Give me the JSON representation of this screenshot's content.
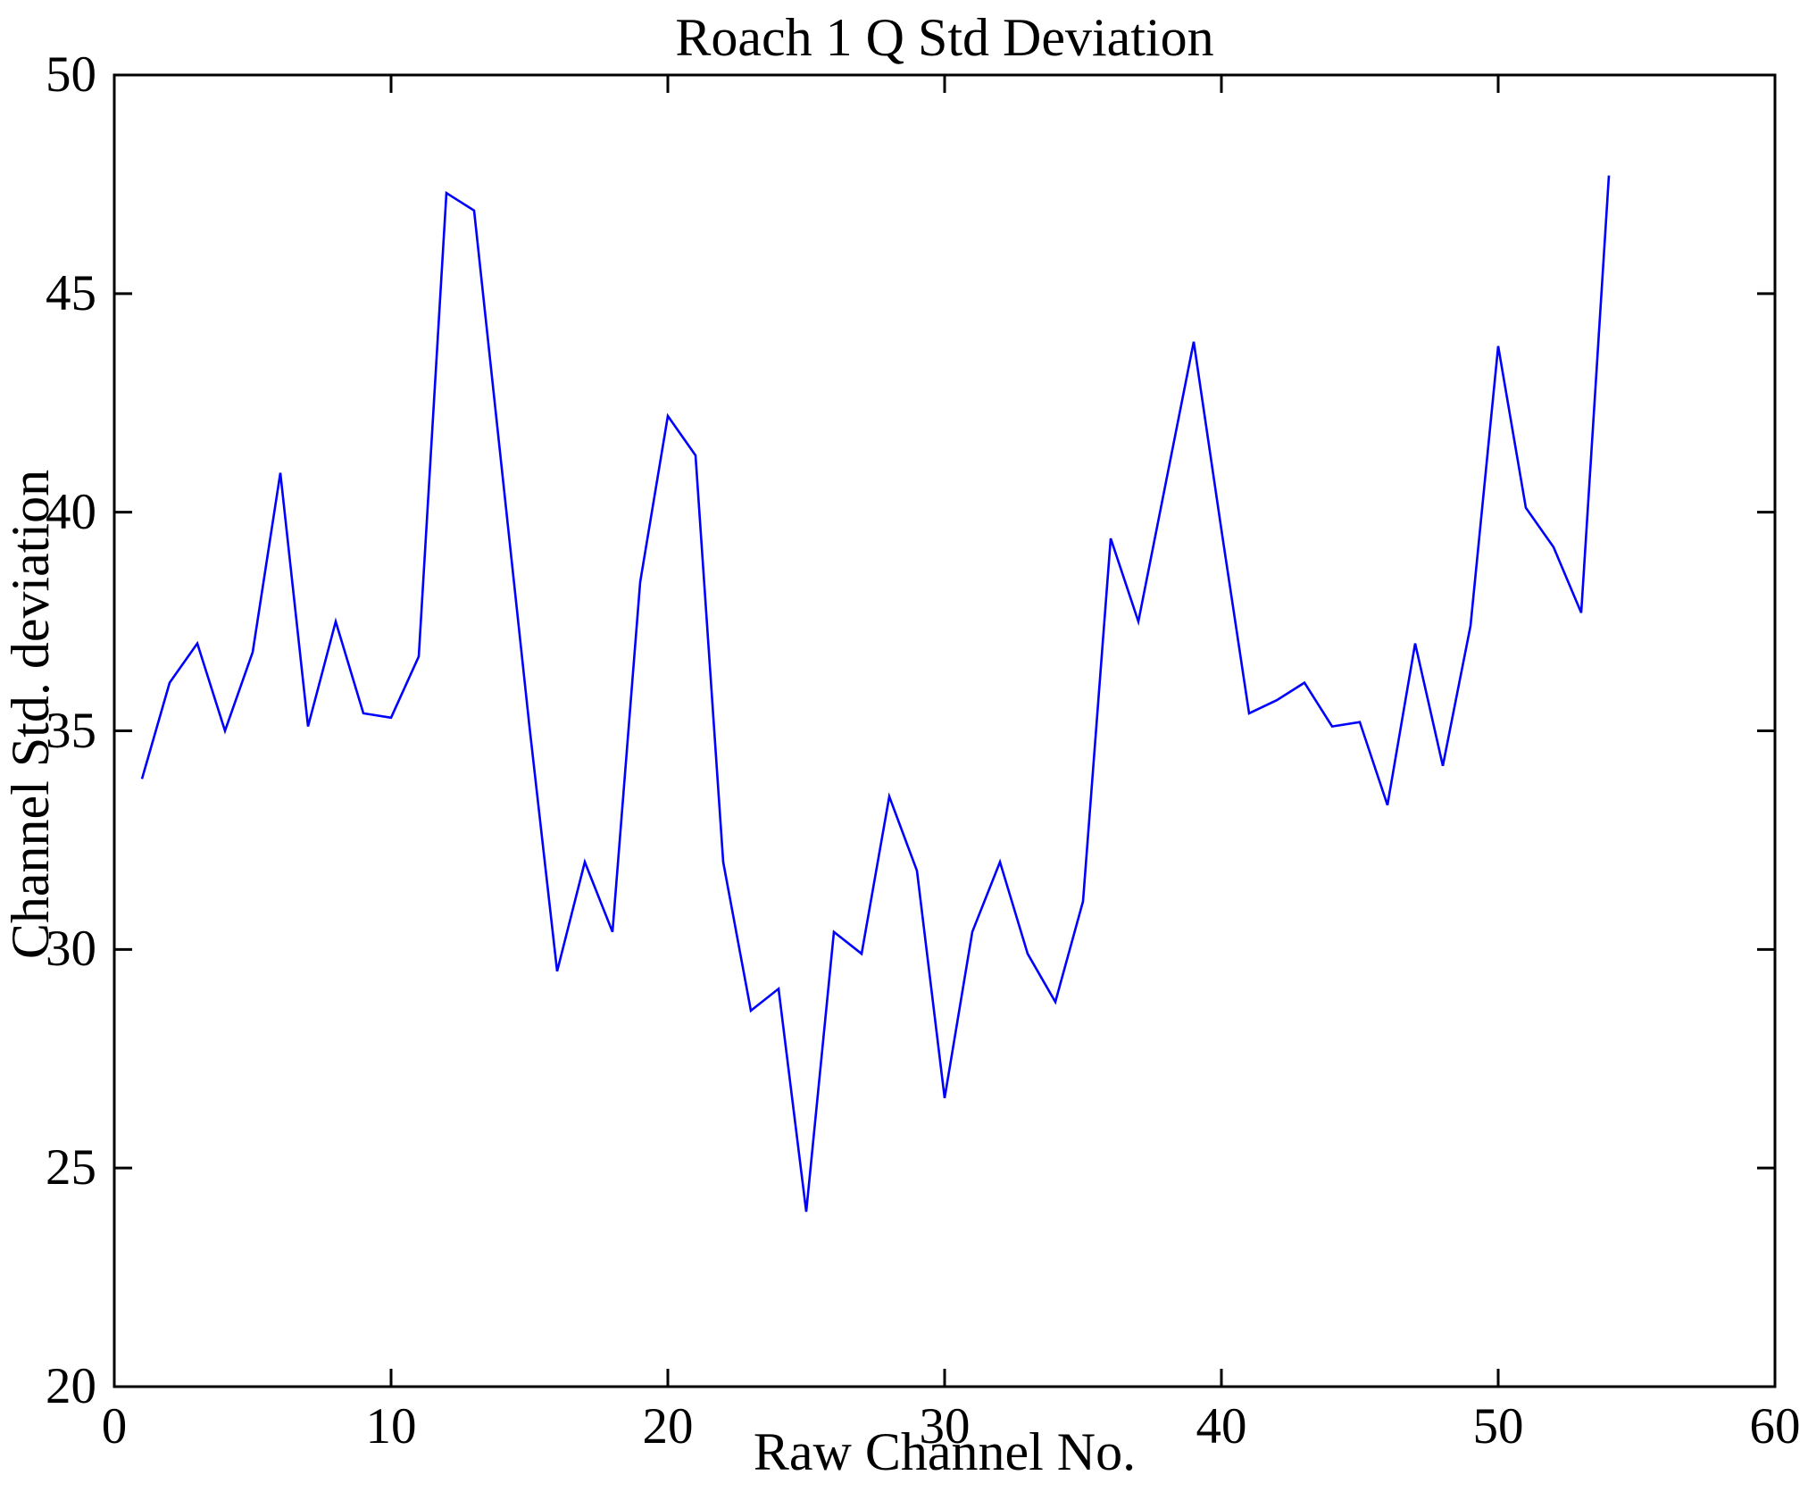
{
  "figure": {
    "background_color": "#ffffff",
    "axis_color": "#000000"
  },
  "chart_data": {
    "type": "line",
    "title": "Roach 1 Q Std Deviation",
    "xlabel": "Raw Channel No.",
    "ylabel": "Channel Std. deviation",
    "xlim": [
      0,
      60
    ],
    "ylim": [
      20,
      50
    ],
    "x_ticks": [
      0,
      10,
      20,
      30,
      40,
      50,
      60
    ],
    "y_ticks": [
      20,
      25,
      30,
      35,
      40,
      45,
      50
    ],
    "grid": false,
    "legend": "none",
    "line_color": "#0000ff",
    "series_name": "Channel Std. deviation",
    "x": [
      1,
      2,
      3,
      4,
      5,
      6,
      7,
      8,
      9,
      10,
      11,
      12,
      13,
      14,
      15,
      16,
      17,
      18,
      19,
      20,
      21,
      22,
      23,
      24,
      25,
      26,
      27,
      28,
      29,
      30,
      31,
      32,
      33,
      34,
      35,
      36,
      37,
      38,
      39,
      40,
      41,
      42,
      43,
      44,
      45,
      46,
      47,
      48,
      49,
      50,
      51,
      52,
      53,
      54
    ],
    "values": [
      33.9,
      36.1,
      37.0,
      35.0,
      36.8,
      40.9,
      35.1,
      37.5,
      35.4,
      35.3,
      36.7,
      47.3,
      46.9,
      41.0,
      35.1,
      29.5,
      32.0,
      30.4,
      38.4,
      42.2,
      41.3,
      32.0,
      28.6,
      29.1,
      24.0,
      30.4,
      29.9,
      33.5,
      31.8,
      26.6,
      30.4,
      32.0,
      29.9,
      28.8,
      31.1,
      39.4,
      37.5,
      40.7,
      43.9,
      39.6,
      35.4,
      35.7,
      36.1,
      35.1,
      35.2,
      33.3,
      37.0,
      34.2,
      37.4,
      43.8,
      40.1,
      39.2,
      37.7,
      47.7
    ]
  }
}
